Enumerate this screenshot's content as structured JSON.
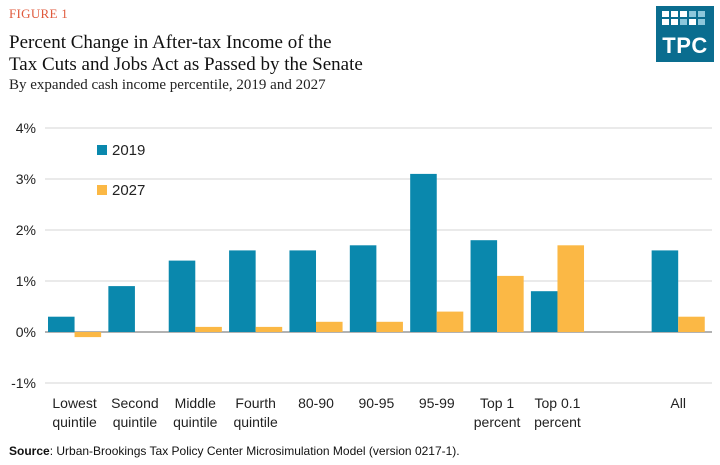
{
  "figure_label": "FIGURE 1",
  "title_lines": [
    "Percent Change in After-tax Income of the",
    "Tax Cuts and Jobs Act as Passed by the Senate"
  ],
  "subtitle": "By expanded cash income percentile, 2019 and 2027",
  "logo": {
    "text": "TPC",
    "color": "#0a6d8f"
  },
  "source": {
    "label": "Source",
    "text": ": Urban-Brookings Tax Policy Center Microsimulation Model (version 0217-1)."
  },
  "chart_data": {
    "type": "bar",
    "categories": [
      [
        "Lowest",
        "quintile"
      ],
      [
        "Second",
        "quintile"
      ],
      [
        "Middle",
        "quintile"
      ],
      [
        "Fourth",
        "quintile"
      ],
      [
        "80-90"
      ],
      [
        "90-95"
      ],
      [
        "95-99"
      ],
      [
        "Top 1",
        "percent"
      ],
      [
        "Top 0.1",
        "percent"
      ],
      [],
      [
        "All"
      ]
    ],
    "series": [
      {
        "name": "2019",
        "color": "#0a88ad",
        "values": [
          0.3,
          0.9,
          1.4,
          1.6,
          1.6,
          1.7,
          3.1,
          1.8,
          0.8,
          null,
          1.6
        ]
      },
      {
        "name": "2027",
        "color": "#fbb845",
        "values": [
          -0.1,
          0.0,
          0.1,
          0.1,
          0.2,
          0.2,
          0.4,
          1.1,
          1.7,
          null,
          0.3
        ]
      }
    ],
    "y_ticks": [
      "4%",
      "3%",
      "2%",
      "1%",
      "0%",
      "-1%"
    ],
    "y_tick_values": [
      4,
      3,
      2,
      1,
      0,
      -1
    ],
    "ylim": [
      -1,
      4
    ],
    "grid": true,
    "legend_position": "top-left"
  }
}
